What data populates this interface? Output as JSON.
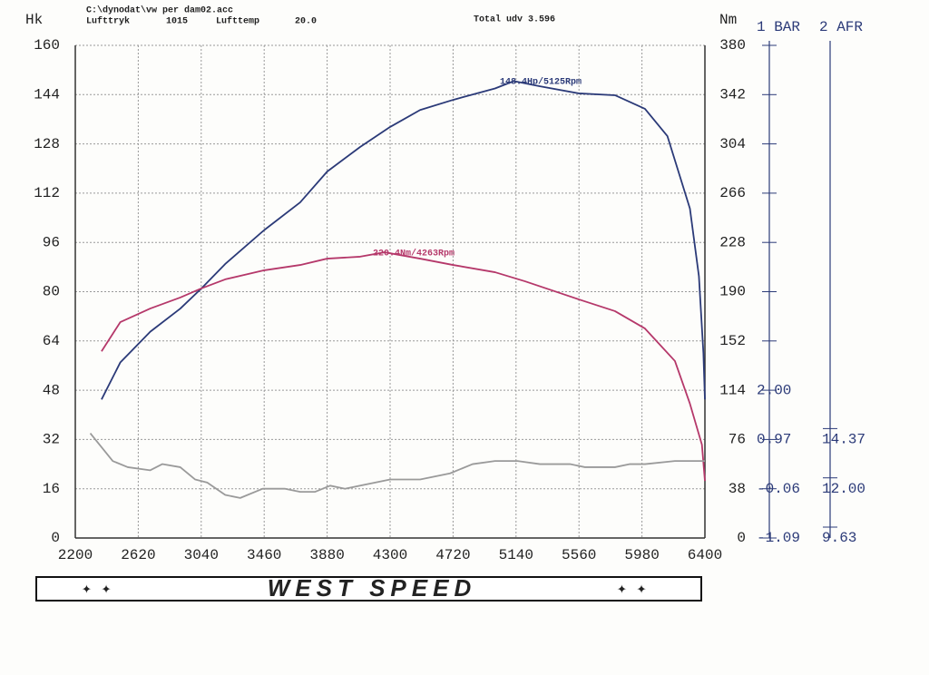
{
  "chart_data": {
    "type": "line",
    "file": "C:\\dynodat\\vw per dam02.acc",
    "pressure_label": "Lufttryk",
    "pressure": "1015",
    "temp_label": "Lufttemp",
    "temp": "20.0",
    "total": "Total udv 3.596",
    "ylabel": "Hk",
    "y2label": "Nm",
    "y3label": "1 BAR",
    "y4label": "2 AFR",
    "annotations": [
      "148.4Hp/5125Rpm",
      "220.4Nm/4263Rpm"
    ],
    "logo": "WEST SPEED",
    "xlim": [
      2200,
      6400
    ],
    "xticks": [
      2200,
      2620,
      3040,
      3460,
      3880,
      4300,
      4720,
      5140,
      5560,
      5980,
      6400
    ],
    "ylim": [
      0,
      160
    ],
    "yticks": [
      0,
      16,
      32,
      48,
      64,
      80,
      96,
      112,
      128,
      144,
      160
    ],
    "y2lim": [
      0,
      380
    ],
    "y2ticks": [
      0,
      38,
      76,
      114,
      152,
      190,
      228,
      266,
      304,
      342,
      380
    ],
    "y3lim": [
      -1.09,
      9.21
    ],
    "y3ticks": [
      -1.09,
      -0.06,
      0.97,
      {
        "value": 2,
        "label": "2.00"
      }
    ],
    "y4lim": [
      9.63,
      33.33
    ],
    "y4ticks": [
      9.63,
      {
        "value": 12,
        "label": "12.00"
      },
      14.37
    ],
    "grid": true,
    "series": [
      {
        "color": "#2b3a78",
        "x": [
          2375,
          2500,
          2700,
          2900,
          3040,
          3200,
          3460,
          3700,
          3880,
          4100,
          4300,
          4500,
          4720,
          5000,
          5125,
          5300,
          5560,
          5800,
          6000,
          6150,
          6300,
          6360,
          6390,
          6400
        ],
        "values": [
          45,
          57,
          67,
          74.5,
          81,
          89,
          100,
          109,
          119,
          127,
          133.5,
          139,
          142.3,
          146,
          148.4,
          146.7,
          144.4,
          143.8,
          139.4,
          130.5,
          107,
          85,
          60,
          45
        ]
      },
      {
        "color": "#b5386a",
        "axis": "y2",
        "x": [
          2375,
          2500,
          2700,
          2900,
          3040,
          3200,
          3460,
          3700,
          3880,
          4100,
          4263,
          4500,
          4720,
          5000,
          5200,
          5560,
          5800,
          6000,
          6200,
          6300,
          6380,
          6400
        ],
        "values": [
          144,
          166.5,
          177,
          185.5,
          192.5,
          199.5,
          206.5,
          210.6,
          215.5,
          217,
          220.4,
          215.5,
          210.6,
          205,
          198,
          184,
          175,
          161.6,
          136.5,
          103.6,
          72,
          44
        ]
      },
      {
        "color": "#9a9a9a",
        "x": [
          2300,
          2450,
          2550,
          2700,
          2780,
          2900,
          3000,
          3080,
          3200,
          3300,
          3450,
          3600,
          3700,
          3800,
          3900,
          4000,
          4300,
          4500,
          4600,
          4700,
          4850,
          5000,
          5150,
          5300,
          5500,
          5600,
          5800,
          5900,
          6000,
          6200,
          6400
        ],
        "values": [
          34,
          25,
          23,
          22,
          24,
          23,
          19,
          18,
          14,
          13,
          16,
          16,
          15,
          15,
          17,
          16,
          19,
          19,
          20,
          21,
          24,
          25,
          25,
          24,
          24,
          23,
          23,
          24,
          24,
          25,
          25
        ]
      }
    ]
  }
}
